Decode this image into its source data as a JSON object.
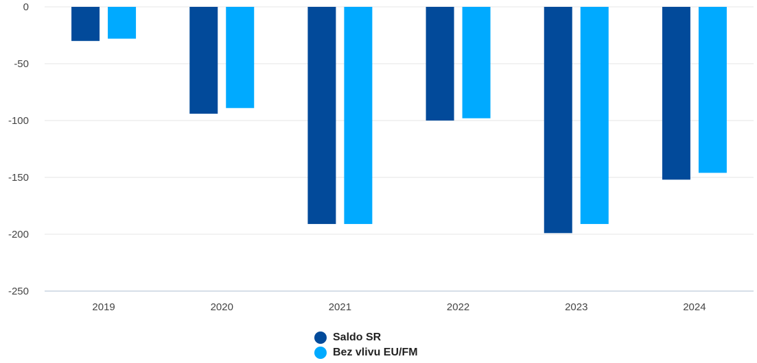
{
  "chart_data": {
    "type": "bar",
    "categories": [
      "2019",
      "2020",
      "2021",
      "2022",
      "2023",
      "2024"
    ],
    "series": [
      {
        "name": "Saldo SR",
        "color": "#024a9a",
        "values": [
          -30,
          -94,
          -191,
          -100,
          -199,
          -152
        ]
      },
      {
        "name": "Bez vlivu EU/FM",
        "color": "#00aaff",
        "values": [
          -28,
          -89,
          -191,
          -98,
          -191,
          -146
        ]
      }
    ],
    "yticks": [
      0,
      -50,
      -100,
      -150,
      -200,
      -250
    ],
    "ylim": [
      -250,
      0
    ],
    "grid": true,
    "legend_position": "bottom-center"
  }
}
